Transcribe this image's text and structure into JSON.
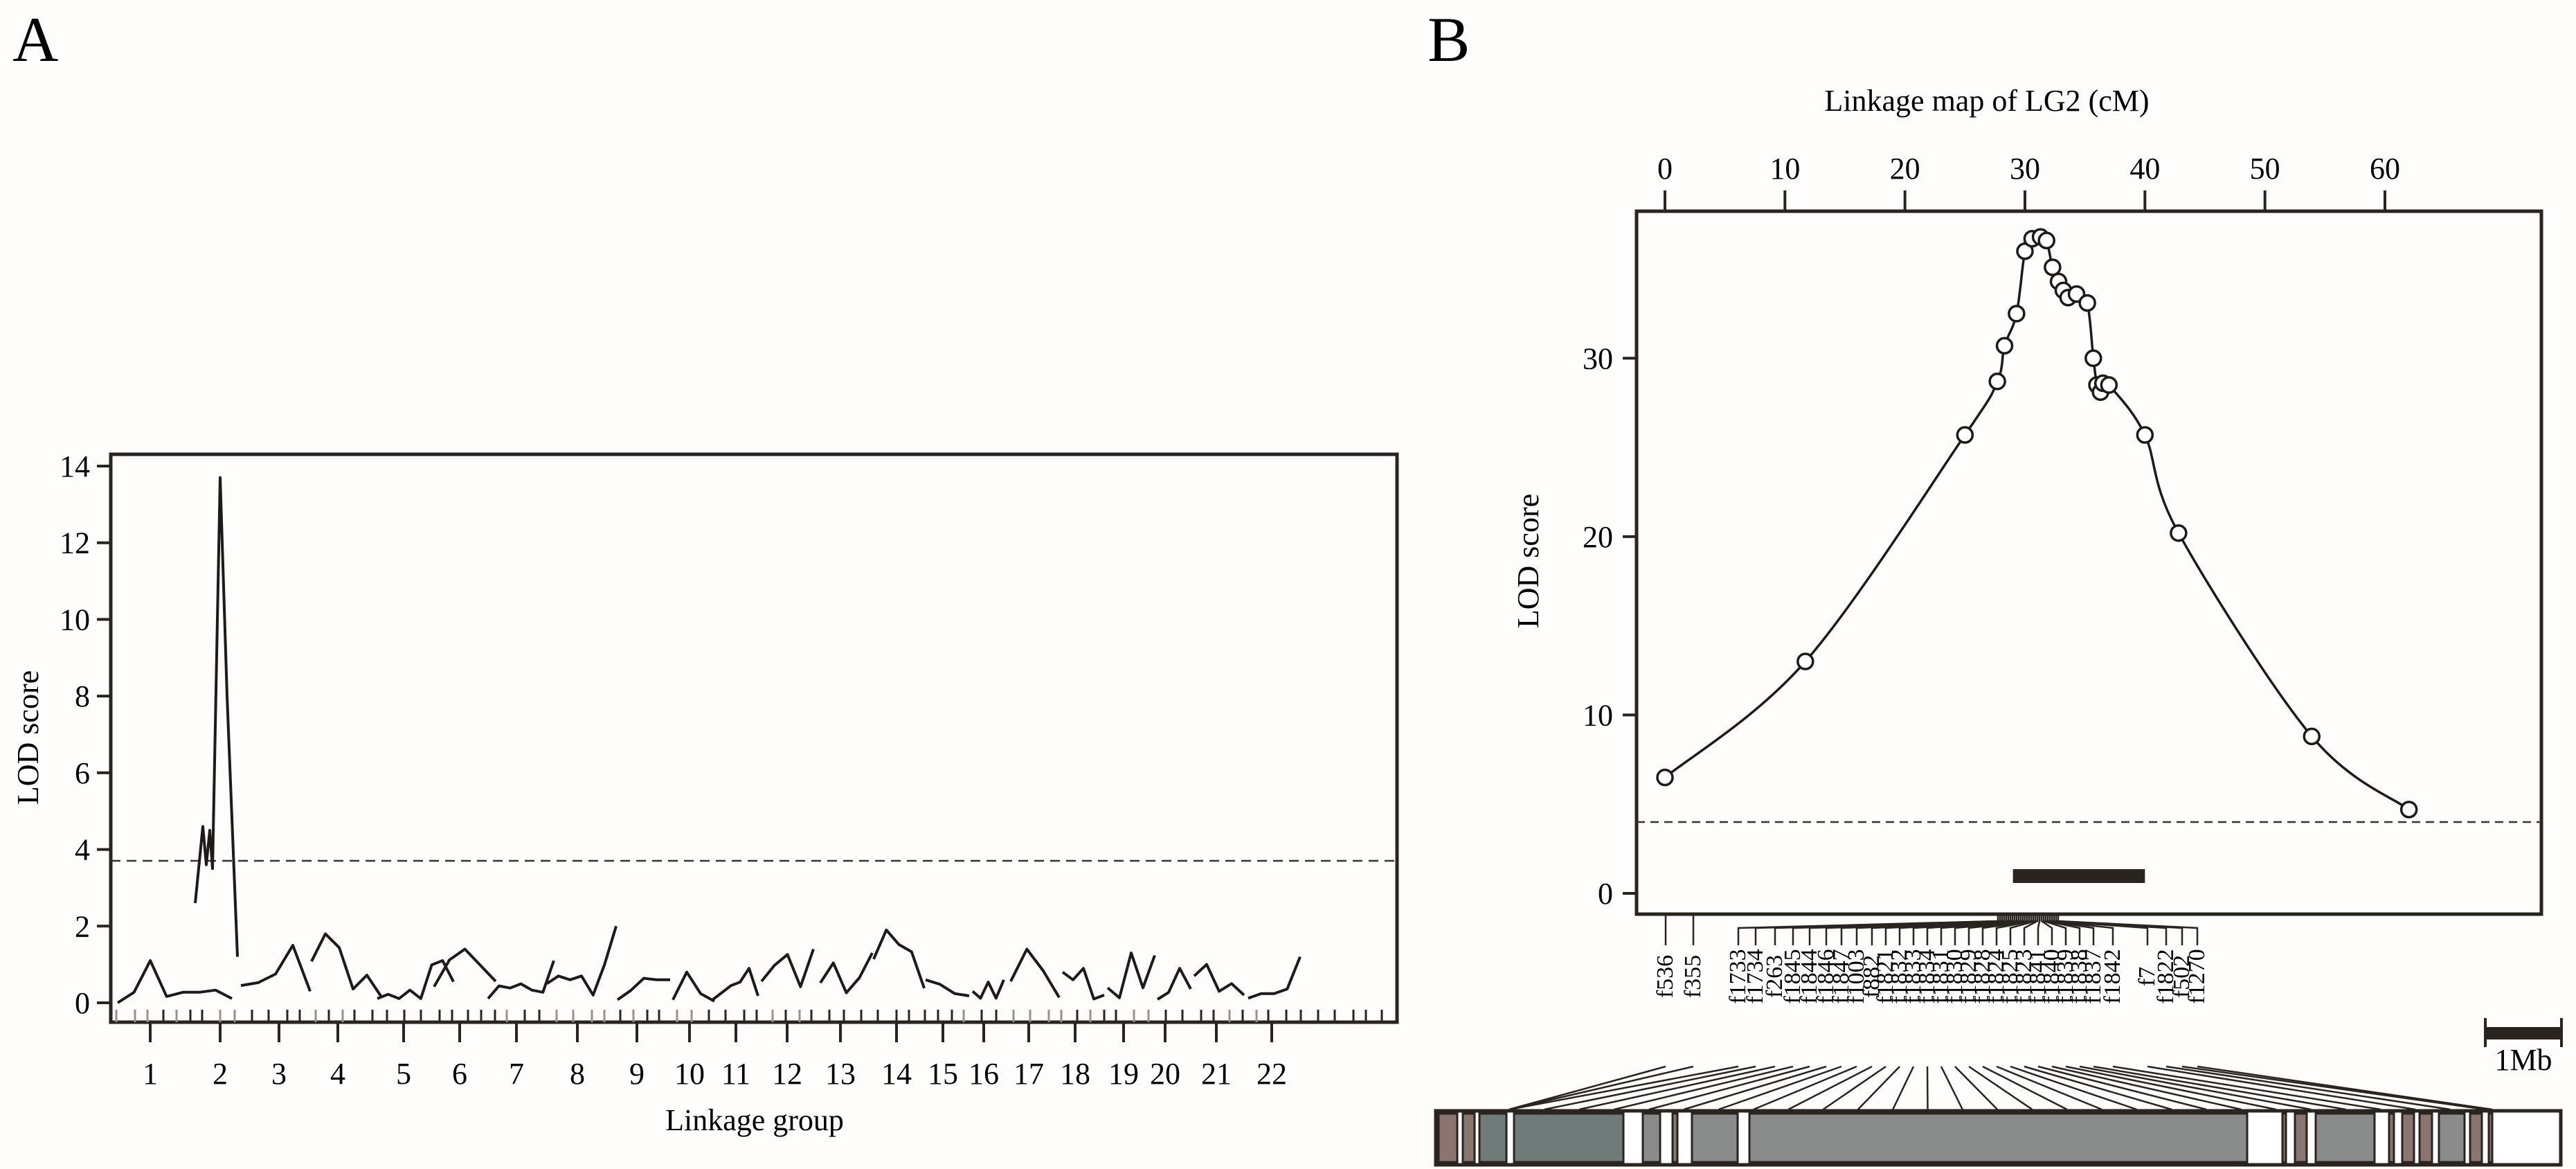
{
  "panels": {
    "A": {
      "letter": "A",
      "xlabel": "Linkage group",
      "ylabel": "LOD score"
    },
    "B": {
      "letter": "B",
      "top_axis_title": "Linkage map of LG2 (cM)",
      "ylabel": "LOD score",
      "scale_bar_label": "1Mb"
    }
  },
  "chart_data": [
    {
      "type": "line",
      "title": "A",
      "xlabel": "Linkage group",
      "ylabel": "LOD score",
      "ylim": [
        0,
        14
      ],
      "yticks": [
        0,
        2,
        4,
        6,
        8,
        10,
        12,
        14
      ],
      "categories": [
        "1",
        "2",
        "3",
        "4",
        "5",
        "6",
        "7",
        "8",
        "9",
        "10",
        "11",
        "12",
        "13",
        "14",
        "15",
        "16",
        "17",
        "18",
        "19",
        "20",
        "21",
        "22"
      ],
      "threshold": 3.7,
      "grid": false,
      "series": [
        {
          "name": "LG1",
          "peak": 1.1
        },
        {
          "name": "LG2",
          "peak": 13.7
        },
        {
          "name": "LG3",
          "peak": 1.5
        },
        {
          "name": "LG4",
          "peak": 1.8
        },
        {
          "name": "LG5",
          "peak": 1.1
        },
        {
          "name": "LG6",
          "peak": 1.4
        },
        {
          "name": "LG7",
          "peak": 1.1
        },
        {
          "name": "LG8",
          "peak": 2.0
        },
        {
          "name": "LG9",
          "peak": 0.8
        },
        {
          "name": "LG10",
          "peak": 0.8
        },
        {
          "name": "LG11",
          "peak": 0.9
        },
        {
          "name": "LG12",
          "peak": 1.4
        },
        {
          "name": "LG13",
          "peak": 1.3
        },
        {
          "name": "LG14",
          "peak": 1.9
        },
        {
          "name": "LG15",
          "peak": 0.6
        },
        {
          "name": "LG16",
          "peak": 0.6
        },
        {
          "name": "LG17",
          "peak": 1.4
        },
        {
          "name": "LG18",
          "peak": 1.0
        },
        {
          "name": "LG19",
          "peak": 1.3
        },
        {
          "name": "LG20",
          "peak": 0.9
        },
        {
          "name": "LG21",
          "peak": 1.0
        },
        {
          "name": "LG22",
          "peak": 1.2
        }
      ]
    },
    {
      "type": "line",
      "title": "B",
      "xlabel": "Linkage map of LG2 (cM)",
      "ylabel": "LOD score",
      "xlim": [
        0,
        62
      ],
      "xticks": [
        0,
        10,
        20,
        30,
        40,
        50,
        60
      ],
      "ylim": [
        0,
        37
      ],
      "yticks": [
        0,
        10,
        20,
        30
      ],
      "threshold": 4.0,
      "confidence_interval_cM": [
        29,
        40
      ],
      "series": [
        {
          "name": "LG2 LOD",
          "x": [
            0,
            11.7,
            25,
            27.7,
            28.3,
            29.3,
            30.0,
            30.6,
            31.3,
            31.8,
            32.3,
            32.8,
            33.2,
            33.6,
            34.3,
            35.2,
            35.7,
            36.0,
            36.3,
            36.5,
            37.0,
            40.0,
            42.8,
            53.9,
            62.0
          ],
          "y": [
            6.5,
            13.0,
            25.7,
            28.7,
            30.7,
            32.5,
            36.0,
            36.7,
            36.8,
            36.6,
            35.1,
            34.3,
            33.8,
            33.4,
            33.6,
            33.1,
            30.0,
            28.5,
            28.1,
            28.6,
            28.5,
            25.7,
            20.2,
            8.8,
            4.7
          ]
        }
      ]
    }
  ],
  "markers": [
    "f536",
    "f355",
    "f1733",
    "f1734",
    "f263",
    "f1845",
    "f1844",
    "f1846",
    "f1847",
    "f1003",
    "f882",
    "f1821",
    "f1832",
    "f1833",
    "f1834",
    "f1831",
    "f1830",
    "f1829",
    "f1828",
    "f1824",
    "f1825",
    "f1823",
    "f1841",
    "f1840",
    "f1839",
    "f1838",
    "f1837",
    "f1842",
    "f7",
    "f1822",
    "f502",
    "f1270"
  ],
  "colors": {
    "line": "#1e1a17",
    "axis": "#2a2420",
    "brown": "#8a7570",
    "slate": "#707a78",
    "grey": "#8a8c8c",
    "white": "#ffffff"
  }
}
